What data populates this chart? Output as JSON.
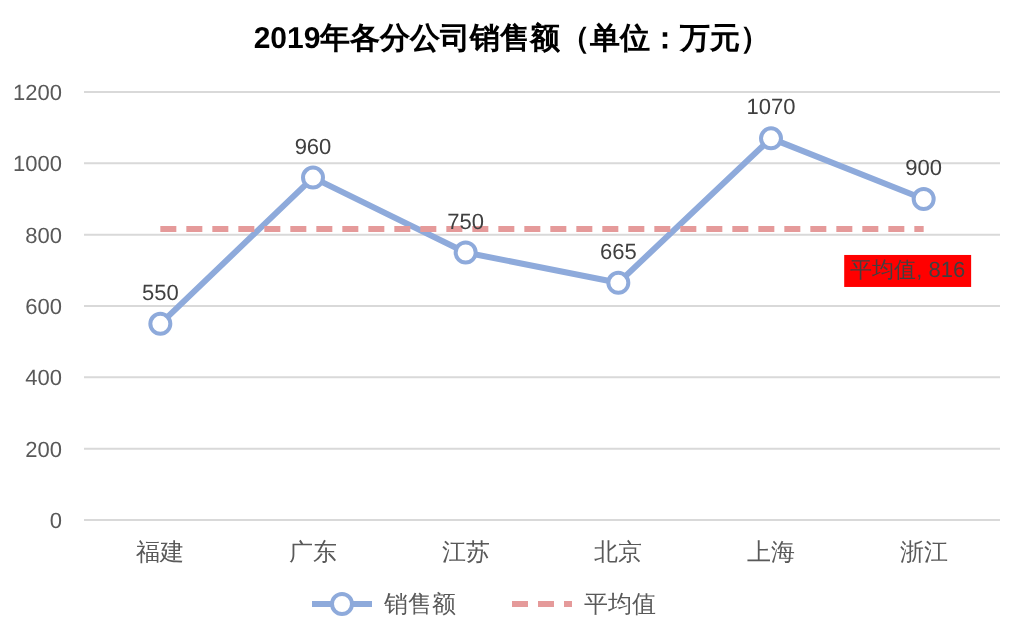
{
  "chart_data": {
    "type": "line",
    "title": "2019年各分公司销售额（单位：万元）",
    "categories": [
      "福建",
      "广东",
      "江苏",
      "北京",
      "上海",
      "浙江"
    ],
    "series": [
      {
        "name": "销售额",
        "color": "#8eaadb",
        "values": [
          550,
          960,
          750,
          665,
          1070,
          900
        ],
        "value_labels": [
          "550",
          "960",
          "750",
          "665",
          "1070",
          "900"
        ],
        "marker": "circle",
        "line_style": "solid"
      },
      {
        "name": "平均值",
        "color": "#e59a9a",
        "values": [
          816,
          816,
          816,
          816,
          816,
          816
        ],
        "marker": "none",
        "line_style": "dashed"
      }
    ],
    "annotations": [
      "平均值, 816"
    ],
    "ylim": [
      0,
      1200
    ],
    "yticks": [
      0,
      200,
      400,
      600,
      800,
      1000,
      1200
    ],
    "grid": "y",
    "legend": "bottom"
  }
}
